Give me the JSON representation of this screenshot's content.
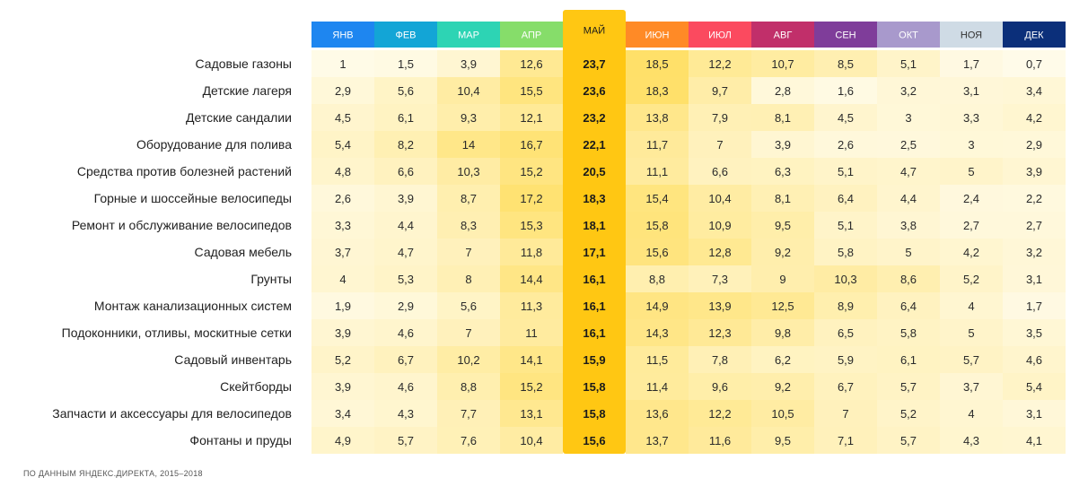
{
  "chart_data": {
    "type": "heatmap",
    "months": [
      "ЯНВ",
      "ФЕВ",
      "МАР",
      "АПР",
      "МАЙ",
      "ИЮН",
      "ИЮЛ",
      "АВГ",
      "СЕН",
      "ОКТ",
      "НОЯ",
      "ДЕК"
    ],
    "highlight_month": "МАЙ",
    "rows": [
      {
        "label": "Садовые газоны",
        "values": [
          "1",
          "1,5",
          "3,9",
          "12,6",
          "23,7",
          "18,5",
          "12,2",
          "10,7",
          "8,5",
          "5,1",
          "1,7",
          "0,7"
        ]
      },
      {
        "label": "Детские лагеря",
        "values": [
          "2,9",
          "5,6",
          "10,4",
          "15,5",
          "23,6",
          "18,3",
          "9,7",
          "2,8",
          "1,6",
          "3,2",
          "3,1",
          "3,4"
        ]
      },
      {
        "label": "Детские сандалии",
        "values": [
          "4,5",
          "6,1",
          "9,3",
          "12,1",
          "23,2",
          "13,8",
          "7,9",
          "8,1",
          "4,5",
          "3",
          "3,3",
          "4,2"
        ]
      },
      {
        "label": "Оборудование для полива",
        "values": [
          "5,4",
          "8,2",
          "14",
          "16,7",
          "22,1",
          "11,7",
          "7",
          "3,9",
          "2,6",
          "2,5",
          "3",
          "2,9"
        ]
      },
      {
        "label": "Средства против болезней растений",
        "values": [
          "4,8",
          "6,6",
          "10,3",
          "15,2",
          "20,5",
          "11,1",
          "6,6",
          "6,3",
          "5,1",
          "4,7",
          "5",
          "3,9"
        ]
      },
      {
        "label": "Горные и шоссейные велосипеды",
        "values": [
          "2,6",
          "3,9",
          "8,7",
          "17,2",
          "18,3",
          "15,4",
          "10,4",
          "8,1",
          "6,4",
          "4,4",
          "2,4",
          "2,2"
        ]
      },
      {
        "label": "Ремонт и обслуживание велосипедов",
        "values": [
          "3,3",
          "4,4",
          "8,3",
          "15,3",
          "18,1",
          "15,8",
          "10,9",
          "9,5",
          "5,1",
          "3,8",
          "2,7",
          "2,7"
        ]
      },
      {
        "label": "Садовая мебель",
        "values": [
          "3,7",
          "4,7",
          "7",
          "11,8",
          "17,1",
          "15,6",
          "12,8",
          "9,2",
          "5,8",
          "5",
          "4,2",
          "3,2"
        ]
      },
      {
        "label": "Грунты",
        "values": [
          "4",
          "5,3",
          "8",
          "14,4",
          "16,1",
          "8,8",
          "7,3",
          "9",
          "10,3",
          "8,6",
          "5,2",
          "3,1"
        ]
      },
      {
        "label": "Монтаж канализационных систем",
        "values": [
          "1,9",
          "2,9",
          "5,6",
          "11,3",
          "16,1",
          "14,9",
          "13,9",
          "12,5",
          "8,9",
          "6,4",
          "4",
          "1,7"
        ]
      },
      {
        "label": "Подоконники, отливы, москитные сетки",
        "values": [
          "3,9",
          "4,6",
          "7",
          "11",
          "16,1",
          "14,3",
          "12,3",
          "9,8",
          "6,5",
          "5,8",
          "5",
          "3,5"
        ]
      },
      {
        "label": "Садовый инвентарь",
        "values": [
          "5,2",
          "6,7",
          "10,2",
          "14,1",
          "15,9",
          "11,5",
          "7,8",
          "6,2",
          "5,9",
          "6,1",
          "5,7",
          "4,6"
        ]
      },
      {
        "label": "Скейтборды",
        "values": [
          "3,9",
          "4,6",
          "8,8",
          "15,2",
          "15,8",
          "11,4",
          "9,6",
          "9,2",
          "6,7",
          "5,7",
          "3,7",
          "5,4"
        ]
      },
      {
        "label": "Запчасти и аксессуары для велосипедов",
        "values": [
          "3,4",
          "4,3",
          "7,7",
          "13,1",
          "15,8",
          "13,6",
          "12,2",
          "10,5",
          "7",
          "5,2",
          "4",
          "3,1"
        ]
      },
      {
        "label": "Фонтаны и пруды",
        "values": [
          "4,9",
          "5,7",
          "7,6",
          "10,4",
          "15,6",
          "13,7",
          "11,6",
          "9,5",
          "7,1",
          "5,7",
          "4,3",
          "4,1"
        ]
      }
    ],
    "month_colors": [
      "#1e86f0",
      "#13a5d6",
      "#2dd4b4",
      "#86dd6a",
      "#ffc713",
      "#ff8a26",
      "#fb4a5f",
      "#c12f6a",
      "#7f3d9a",
      "#a899cc",
      "#cfdbe5",
      "#0b2f7a"
    ],
    "month_text_colors": [
      "#ffffff",
      "#ffffff",
      "#ffffff",
      "#ffffff",
      "#1a1a1a",
      "#ffffff",
      "#ffffff",
      "#ffffff",
      "#ffffff",
      "#ffffff",
      "#333333",
      "#ffffff"
    ],
    "scale_colors": [
      "#fffbe9",
      "#ffe069"
    ],
    "highlight_color": "#ffc713"
  },
  "source": "ПО ДАННЫМ ЯНДЕКС.ДИРЕКТА, 2015–2018"
}
